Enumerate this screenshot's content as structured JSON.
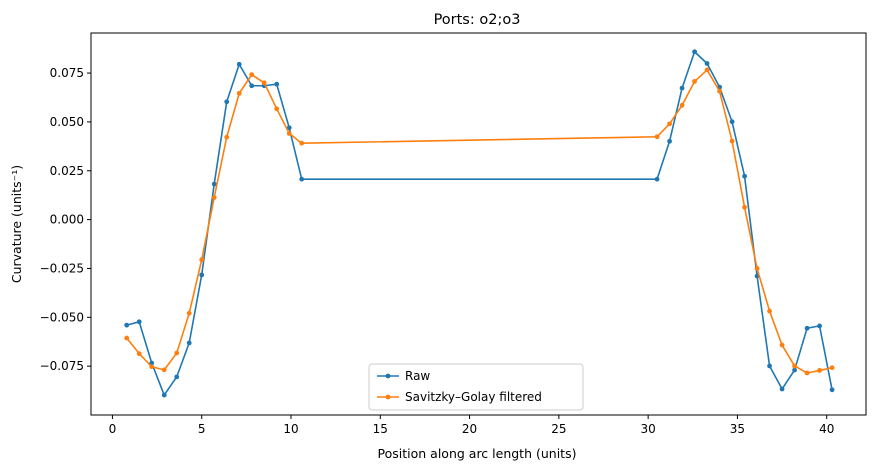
{
  "chart_data": {
    "type": "line",
    "title": "Ports: o2;o3",
    "xlabel": "Position along arc length (units)",
    "ylabel": "Curvature (units⁻¹)",
    "xlim": [
      -1.2,
      42.2
    ],
    "ylim": [
      -0.1,
      0.0955
    ],
    "xticks": [
      0,
      5,
      10,
      15,
      20,
      25,
      30,
      35,
      40
    ],
    "xtick_labels": [
      "0",
      "5",
      "10",
      "15",
      "20",
      "25",
      "30",
      "35",
      "40"
    ],
    "yticks": [
      -0.075,
      -0.05,
      -0.025,
      0.0,
      0.025,
      0.05,
      0.075
    ],
    "ytick_labels": [
      "−0.075",
      "−0.050",
      "−0.025",
      "0.000",
      "0.025",
      "0.050",
      "0.075"
    ],
    "grid": false,
    "legend_position": "lower center",
    "series": [
      {
        "name": "Raw",
        "color": "#1f77b4",
        "x": [
          0.8,
          1.5,
          2.2,
          2.9,
          3.6,
          4.3,
          5.0,
          5.7,
          6.4,
          7.1,
          7.8,
          8.5,
          9.2,
          9.9,
          10.6,
          30.5,
          31.2,
          31.9,
          32.6,
          33.3,
          34.0,
          34.7,
          35.4,
          36.1,
          36.8,
          37.5,
          38.2,
          38.9,
          39.6,
          40.3
        ],
        "y": [
          -0.054,
          -0.0523,
          -0.0734,
          -0.0898,
          -0.0805,
          -0.0631,
          -0.0283,
          0.0182,
          0.0603,
          0.0795,
          0.0685,
          0.0685,
          0.0693,
          0.047,
          0.0207,
          0.0207,
          0.0401,
          0.0673,
          0.0859,
          0.0799,
          0.0678,
          0.0501,
          0.0222,
          -0.0289,
          -0.0749,
          -0.0867,
          -0.077,
          -0.0556,
          -0.0544,
          -0.0871
        ]
      },
      {
        "name": "Savitzky–Golay filtered",
        "color": "#ff7f0e",
        "x": [
          0.8,
          1.5,
          2.2,
          2.9,
          3.6,
          4.3,
          5.0,
          5.7,
          6.4,
          7.1,
          7.8,
          8.5,
          9.2,
          9.9,
          10.6,
          30.5,
          31.2,
          31.9,
          32.6,
          33.3,
          34.0,
          34.7,
          35.4,
          36.1,
          36.8,
          37.5,
          38.2,
          38.9,
          39.6,
          40.3
        ],
        "y": [
          -0.0606,
          -0.0686,
          -0.0753,
          -0.0769,
          -0.0683,
          -0.0479,
          -0.0205,
          0.0113,
          0.0422,
          0.0646,
          0.0742,
          0.07,
          0.0567,
          0.0441,
          0.0391,
          0.0424,
          0.049,
          0.0585,
          0.0707,
          0.0766,
          0.0657,
          0.0402,
          0.0063,
          -0.025,
          -0.0468,
          -0.0642,
          -0.0749,
          -0.0785,
          -0.0772,
          -0.0758
        ]
      }
    ]
  }
}
